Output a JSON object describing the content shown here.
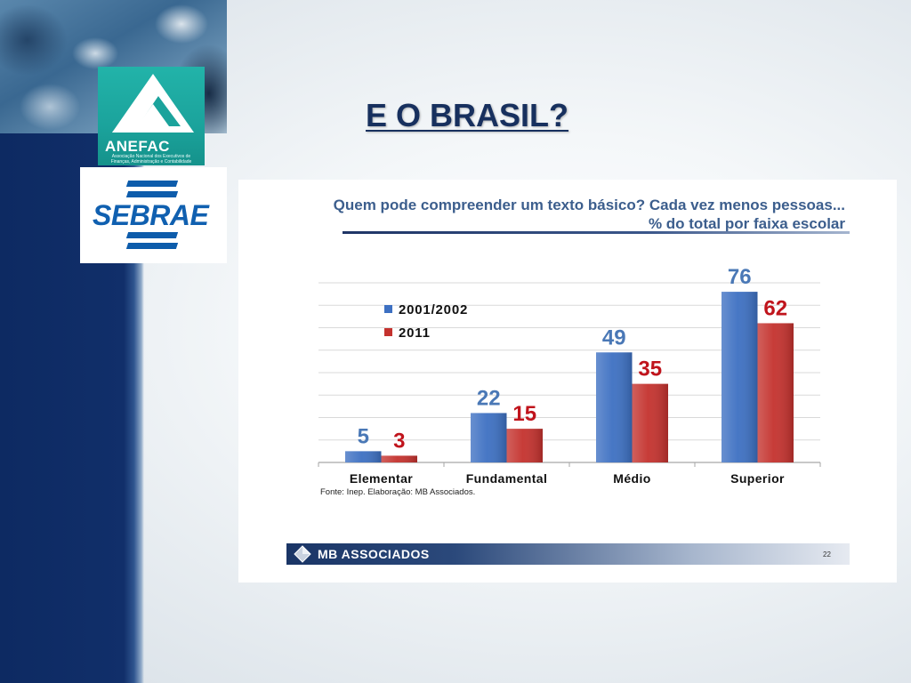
{
  "slide": {
    "title": "E O BRASIL?"
  },
  "colors": {
    "stripe": "#0f2c64",
    "title": "#17305e",
    "anefac_teal": "#1ba39c",
    "sebrae_blue": "#0d5cab"
  },
  "logos": {
    "anefac": {
      "name": "ANEFAC",
      "tagline": "Associação Nacional dos Executivos de Finanças, Administração e Contabilidade"
    },
    "sebrae": {
      "name": "SEBRAE"
    }
  },
  "chart_data": {
    "type": "bar",
    "title": "Quem pode compreender um texto básico? Cada vez menos pessoas...",
    "subtitle": "% do total por faixa escolar",
    "xlabel": "",
    "ylabel": "",
    "categories": [
      "Elementar",
      "Fundamental",
      "Médio",
      "Superior"
    ],
    "series": [
      {
        "name": "2001/2002",
        "values": [
          5,
          22,
          49,
          76
        ],
        "color": "#3d70c2",
        "label_color": "#4a78b6"
      },
      {
        "name": "2011",
        "values": [
          3,
          15,
          35,
          62
        ],
        "color": "#c4322e",
        "label_color": "#c0141c"
      }
    ],
    "ylim": [
      0,
      80
    ],
    "grid": true,
    "data_labels": true,
    "legend_position": "top-left",
    "source": "Fonte: Inep. Elaboração: MB Associados."
  },
  "footer": {
    "brand": "MB ASSOCIADOS",
    "page_number": "22",
    "logo_icon": "diamond-icon"
  }
}
